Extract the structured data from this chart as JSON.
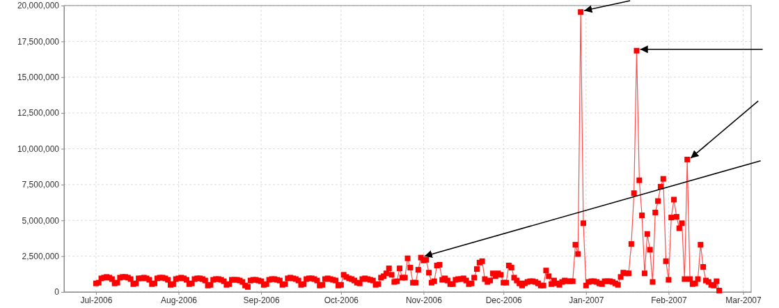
{
  "chart_data": {
    "type": "line",
    "marker": "square",
    "grid": true,
    "line_style": "solid",
    "xlim": [
      "2006-06-19",
      "2007-03-04"
    ],
    "xticks": [
      {
        "value": "2006-07-01",
        "label": "Jul-2006"
      },
      {
        "value": "2006-08-01",
        "label": "Aug-2006"
      },
      {
        "value": "2006-09-01",
        "label": "Sep-2006"
      },
      {
        "value": "2006-10-01",
        "label": "Oct-2006"
      },
      {
        "value": "2006-11-01",
        "label": "Nov-2006"
      },
      {
        "value": "2006-12-01",
        "label": "Dec-2006"
      },
      {
        "value": "2007-01-01",
        "label": "Jan-2007"
      },
      {
        "value": "2007-02-01",
        "label": "Feb-2007"
      },
      {
        "value": "2007-03-01",
        "label": "Mar-2007"
      }
    ],
    "ylim": [
      0,
      20000000
    ],
    "yticks": [
      0,
      {
        "value": 2500000,
        "label": "2,500,000"
      },
      {
        "value": 5000000,
        "label": "5,000,000"
      },
      {
        "value": 7500000,
        "label": "7,500,000"
      },
      {
        "value": 10000000,
        "label": "10,000,000"
      },
      {
        "value": 12500000,
        "label": "12,500,000"
      },
      {
        "value": 15000000,
        "label": "15,000,000"
      },
      {
        "value": 17500000,
        "label": "17,500,000"
      },
      {
        "value": 20000000,
        "label": "20,000,000"
      }
    ],
    "x": [
      "2006-07-01",
      "2006-07-02",
      "2006-07-03",
      "2006-07-04",
      "2006-07-05",
      "2006-07-06",
      "2006-07-07",
      "2006-07-08",
      "2006-07-09",
      "2006-07-10",
      "2006-07-11",
      "2006-07-12",
      "2006-07-13",
      "2006-07-14",
      "2006-07-15",
      "2006-07-16",
      "2006-07-17",
      "2006-07-18",
      "2006-07-19",
      "2006-07-20",
      "2006-07-21",
      "2006-07-22",
      "2006-07-23",
      "2006-07-24",
      "2006-07-25",
      "2006-07-26",
      "2006-07-27",
      "2006-07-28",
      "2006-07-29",
      "2006-07-30",
      "2006-07-31",
      "2006-08-01",
      "2006-08-02",
      "2006-08-03",
      "2006-08-04",
      "2006-08-05",
      "2006-08-06",
      "2006-08-07",
      "2006-08-08",
      "2006-08-09",
      "2006-08-10",
      "2006-08-11",
      "2006-08-12",
      "2006-08-13",
      "2006-08-14",
      "2006-08-15",
      "2006-08-16",
      "2006-08-17",
      "2006-08-18",
      "2006-08-19",
      "2006-08-20",
      "2006-08-21",
      "2006-08-22",
      "2006-08-23",
      "2006-08-24",
      "2006-08-25",
      "2006-08-26",
      "2006-08-27",
      "2006-08-28",
      "2006-08-29",
      "2006-08-30",
      "2006-08-31",
      "2006-09-01",
      "2006-09-02",
      "2006-09-03",
      "2006-09-04",
      "2006-09-05",
      "2006-09-06",
      "2006-09-07",
      "2006-09-08",
      "2006-09-09",
      "2006-09-10",
      "2006-09-11",
      "2006-09-12",
      "2006-09-13",
      "2006-09-14",
      "2006-09-15",
      "2006-09-16",
      "2006-09-17",
      "2006-09-18",
      "2006-09-19",
      "2006-09-20",
      "2006-09-21",
      "2006-09-22",
      "2006-09-23",
      "2006-09-24",
      "2006-09-25",
      "2006-09-26",
      "2006-09-27",
      "2006-09-28",
      "2006-09-29",
      "2006-09-30",
      "2006-10-01",
      "2006-10-02",
      "2006-10-03",
      "2006-10-04",
      "2006-10-05",
      "2006-10-06",
      "2006-10-07",
      "2006-10-08",
      "2006-10-09",
      "2006-10-10",
      "2006-10-11",
      "2006-10-12",
      "2006-10-13",
      "2006-10-14",
      "2006-10-15",
      "2006-10-16",
      "2006-10-17",
      "2006-10-18",
      "2006-10-19",
      "2006-10-20",
      "2006-10-21",
      "2006-10-22",
      "2006-10-23",
      "2006-10-24",
      "2006-10-25",
      "2006-10-26",
      "2006-10-27",
      "2006-10-28",
      "2006-10-29",
      "2006-10-30",
      "2006-10-31",
      "2006-11-01",
      "2006-11-02",
      "2006-11-03",
      "2006-11-04",
      "2006-11-05",
      "2006-11-06",
      "2006-11-07",
      "2006-11-08",
      "2006-11-09",
      "2006-11-10",
      "2006-11-11",
      "2006-11-12",
      "2006-11-13",
      "2006-11-14",
      "2006-11-15",
      "2006-11-16",
      "2006-11-17",
      "2006-11-18",
      "2006-11-19",
      "2006-11-20",
      "2006-11-21",
      "2006-11-22",
      "2006-11-23",
      "2006-11-24",
      "2006-11-25",
      "2006-11-26",
      "2006-11-27",
      "2006-11-28",
      "2006-11-29",
      "2006-11-30",
      "2006-12-01",
      "2006-12-02",
      "2006-12-03",
      "2006-12-04",
      "2006-12-05",
      "2006-12-06",
      "2006-12-07",
      "2006-12-08",
      "2006-12-09",
      "2006-12-10",
      "2006-12-11",
      "2006-12-12",
      "2006-12-13",
      "2006-12-14",
      "2006-12-15",
      "2006-12-16",
      "2006-12-17",
      "2006-12-18",
      "2006-12-19",
      "2006-12-20",
      "2006-12-21",
      "2006-12-22",
      "2006-12-23",
      "2006-12-24",
      "2006-12-25",
      "2006-12-26",
      "2006-12-27",
      "2006-12-28",
      "2006-12-29",
      "2006-12-30",
      "2006-12-31",
      "2007-01-01",
      "2007-01-02",
      "2007-01-03",
      "2007-01-04",
      "2007-01-05",
      "2007-01-06",
      "2007-01-07",
      "2007-01-08",
      "2007-01-09",
      "2007-01-10",
      "2007-01-11",
      "2007-01-12",
      "2007-01-13",
      "2007-01-14",
      "2007-01-15",
      "2007-01-16",
      "2007-01-17",
      "2007-01-18",
      "2007-01-19",
      "2007-01-20",
      "2007-01-21",
      "2007-01-22",
      "2007-01-23",
      "2007-01-24",
      "2007-01-25",
      "2007-01-26",
      "2007-01-27",
      "2007-01-28",
      "2007-01-29",
      "2007-01-30",
      "2007-01-31",
      "2007-02-01",
      "2007-02-02",
      "2007-02-03",
      "2007-02-04",
      "2007-02-05",
      "2007-02-06",
      "2007-02-07",
      "2007-02-08",
      "2007-02-09",
      "2007-02-10",
      "2007-02-11",
      "2007-02-12",
      "2007-02-13",
      "2007-02-14",
      "2007-02-15",
      "2007-02-16",
      "2007-02-17",
      "2007-02-18",
      "2007-02-19",
      "2007-02-20"
    ],
    "series": [
      {
        "color": "#ff0000",
        "values": [
          600000,
          650000,
          950000,
          1000000,
          1050000,
          1000000,
          900000,
          600000,
          650000,
          1000000,
          1050000,
          1050000,
          1000000,
          900000,
          550000,
          600000,
          950000,
          950000,
          1000000,
          950000,
          850000,
          550000,
          600000,
          950000,
          1000000,
          1000000,
          950000,
          850000,
          500000,
          550000,
          900000,
          950000,
          1000000,
          950000,
          850000,
          550000,
          600000,
          900000,
          950000,
          950000,
          900000,
          800000,
          450000,
          500000,
          850000,
          900000,
          900000,
          850000,
          750000,
          500000,
          550000,
          850000,
          850000,
          850000,
          800000,
          700000,
          450000,
          350000,
          800000,
          850000,
          850000,
          800000,
          750000,
          500000,
          550000,
          850000,
          900000,
          900000,
          850000,
          800000,
          500000,
          550000,
          950000,
          1000000,
          950000,
          900000,
          800000,
          500000,
          550000,
          900000,
          950000,
          950000,
          900000,
          800000,
          450000,
          500000,
          900000,
          950000,
          900000,
          850000,
          800000,
          450000,
          500000,
          1200000,
          1050000,
          950000,
          900000,
          800000,
          650000,
          600000,
          900000,
          950000,
          900000,
          850000,
          800000,
          500000,
          550000,
          1000000,
          1100000,
          1300000,
          1650000,
          1200000,
          700000,
          750000,
          1650000,
          1000000,
          1000000,
          2350000,
          1700000,
          650000,
          650000,
          1550000,
          2400000,
          2200000,
          2250000,
          1350000,
          650000,
          750000,
          1850000,
          1900000,
          850000,
          950000,
          800000,
          550000,
          550000,
          850000,
          900000,
          900000,
          950000,
          800000,
          550000,
          600000,
          1000000,
          1600000,
          2050000,
          2150000,
          900000,
          700000,
          800000,
          1300000,
          1100000,
          1300000,
          1200000,
          650000,
          650000,
          1850000,
          1700000,
          1000000,
          800000,
          600000,
          450000,
          600000,
          700000,
          750000,
          750000,
          700000,
          600000,
          450000,
          450000,
          1500000,
          1100000,
          550000,
          800000,
          600000,
          500000,
          700000,
          800000,
          750000,
          750000,
          750000,
          3300000,
          2650000,
          19550000,
          4800000,
          450000,
          700000,
          750000,
          750000,
          700000,
          600000,
          550000,
          750000,
          750000,
          750000,
          700000,
          600000,
          500000,
          1050000,
          1350000,
          1300000,
          1300000,
          3350000,
          6900000,
          16850000,
          7800000,
          5350000,
          1300000,
          4050000,
          2950000,
          700000,
          5550000,
          6350000,
          7350000,
          7900000,
          2150000,
          850000,
          5200000,
          6450000,
          5250000,
          4450000,
          4800000,
          900000,
          9250000,
          900000,
          550000,
          600000,
          900000,
          3300000,
          1750000,
          800000,
          700000,
          500000,
          450000,
          750000,
          100000
        ]
      }
    ]
  }
}
